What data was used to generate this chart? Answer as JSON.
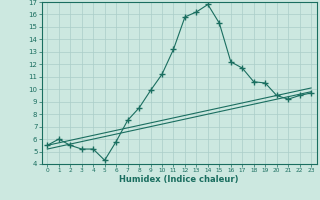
{
  "xlabel": "Humidex (Indice chaleur)",
  "background_color": "#cce8e0",
  "grid_color": "#aacec8",
  "line_color": "#1a6e60",
  "xlim": [
    -0.5,
    23.5
  ],
  "ylim": [
    4,
    17
  ],
  "yticks": [
    4,
    5,
    6,
    7,
    8,
    9,
    10,
    11,
    12,
    13,
    14,
    15,
    16,
    17
  ],
  "xticks": [
    0,
    1,
    2,
    3,
    4,
    5,
    6,
    7,
    8,
    9,
    10,
    11,
    12,
    13,
    14,
    15,
    16,
    17,
    18,
    19,
    20,
    21,
    22,
    23
  ],
  "series1_x": [
    0,
    1,
    2,
    3,
    4,
    5,
    6,
    7,
    8,
    9,
    10,
    11,
    12,
    13,
    14,
    15,
    16,
    17,
    18,
    19,
    20,
    21,
    22,
    23
  ],
  "series1_y": [
    5.5,
    6.0,
    5.5,
    5.2,
    5.2,
    4.3,
    5.8,
    7.5,
    8.5,
    9.9,
    11.2,
    13.2,
    15.8,
    16.2,
    16.8,
    15.3,
    12.2,
    11.7,
    10.6,
    10.5,
    9.5,
    9.2,
    9.5,
    9.7
  ],
  "series2_x": [
    0,
    23
  ],
  "series2_y": [
    5.5,
    10.1
  ],
  "series3_x": [
    0,
    23
  ],
  "series3_y": [
    5.2,
    9.8
  ]
}
